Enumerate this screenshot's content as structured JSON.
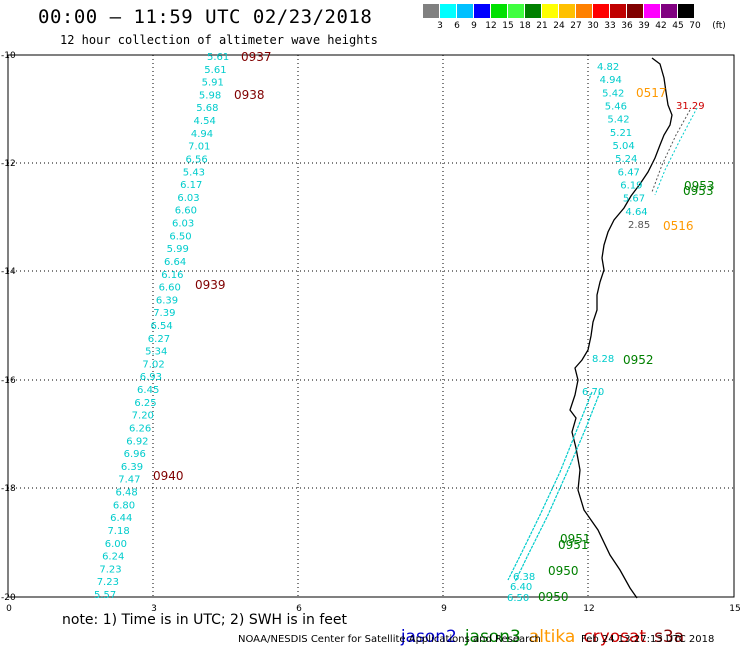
{
  "title": "00:00 – 11:59 UTC 02/23/2018",
  "subtitle": "12 hour collection of altimeter wave heights",
  "scale": {
    "unit_label": "(ft)",
    "ticks": [
      "3",
      "6",
      "9",
      "12",
      "15",
      "18",
      "21",
      "24",
      "27",
      "30",
      "33",
      "36",
      "39",
      "42",
      "45",
      "70"
    ],
    "colors": [
      "#808080",
      "#00ffff",
      "#00c0ff",
      "#0000ff",
      "#00e000",
      "#40ff40",
      "#008000",
      "#ffff00",
      "#ffc000",
      "#ff8000",
      "#ff0000",
      "#c00000",
      "#800000",
      "#ff00ff",
      "#800080",
      "#000000"
    ]
  },
  "axes": {
    "x_ticks": [
      "0",
      "3",
      "6",
      "9",
      "12",
      "15"
    ],
    "y_ticks": [
      "-10",
      "-12",
      "-14",
      "-16",
      "-18",
      "-20"
    ]
  },
  "times": {
    "t0937": "0937",
    "t0938": "0938",
    "t0939": "0939",
    "t0940": "0940",
    "t0517": "0517",
    "t0516": "0516",
    "t0952": "0952",
    "t0953": "0953",
    "t0951": "0951",
    "t0950": "0950"
  },
  "west_track": [
    "5.61",
    "5.61",
    "5.91",
    "5.98",
    "5.68",
    "4.54",
    "4.94",
    "7.01",
    "6.56",
    "5.43",
    "6.17",
    "6.03",
    "6.60",
    "6.03",
    "6.50",
    "5.99",
    "6.64",
    "6.16",
    "6.60",
    "6.39",
    "7.39",
    "6.54",
    "6.27",
    "5.34",
    "7.02",
    "6.93",
    "6.45",
    "6.25",
    "7.20",
    "6.26",
    "6.92",
    "6.96",
    "6.39",
    "7.47",
    "6.48",
    "6.80",
    "6.44",
    "7.18",
    "6.00",
    "6.24",
    "7.23",
    "7.23",
    "5.57"
  ],
  "coastal_track": [
    "4.82",
    "4.94",
    "5.42",
    "5.46",
    "5.42",
    "5.21",
    "5.04",
    "5.24",
    "6.47",
    "6.19",
    "5.67",
    "4.64",
    "2.85"
  ],
  "cryosat_value": "31.29",
  "south_track": [
    "8.28",
    "6.70",
    "6.40",
    "6.50",
    "6.38"
  ],
  "colors": {
    "jason2": "#0000cc",
    "jason3": "#008000",
    "altika": "#ff9900",
    "cryosat": "#cc0000",
    "s3a": "#800000",
    "swh_cyan": "#00cccc",
    "grid": "#000000"
  },
  "note": "note: 1) Time is in UTC; 2) SWH is in feet",
  "legend": {
    "jason2": "jason2",
    "jason3": "jason3",
    "altika": "altika",
    "cryosat": "cryosat",
    "s3a": "s3a"
  },
  "credit": "NOAA/NESDIS Center for Satellite Applications and Research",
  "stamp": "Feb 24 13:27:13 UTC 2018"
}
